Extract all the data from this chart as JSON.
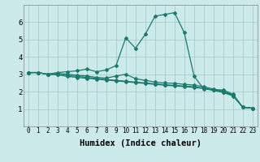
{
  "xlabel": "Humidex (Indice chaleur)",
  "background_color": "#cceaea",
  "grid_color": "#aacccc",
  "line_color": "#1a7a6e",
  "x_data": [
    0,
    1,
    2,
    3,
    4,
    5,
    6,
    7,
    8,
    9,
    10,
    11,
    12,
    13,
    14,
    15,
    16,
    17,
    18,
    19,
    20,
    21,
    22,
    23
  ],
  "lines": [
    [
      3.1,
      3.1,
      3.0,
      3.1,
      3.15,
      3.2,
      3.3,
      3.15,
      3.25,
      3.5,
      5.1,
      4.5,
      5.3,
      6.35,
      6.45,
      6.55,
      5.4,
      2.9,
      2.15,
      2.1,
      2.1,
      1.85,
      1.1,
      1.05
    ],
    [
      3.1,
      3.1,
      3.0,
      3.05,
      3.0,
      2.95,
      2.9,
      2.82,
      2.78,
      2.9,
      3.0,
      2.75,
      2.65,
      2.55,
      2.5,
      2.48,
      2.42,
      2.38,
      2.28,
      2.15,
      2.02,
      1.82,
      1.1,
      1.05
    ],
    [
      3.1,
      3.1,
      3.0,
      3.0,
      2.92,
      2.88,
      2.82,
      2.76,
      2.7,
      2.65,
      2.6,
      2.55,
      2.5,
      2.45,
      2.4,
      2.36,
      2.32,
      2.28,
      2.2,
      2.1,
      1.98,
      1.78,
      1.1,
      1.05
    ],
    [
      3.1,
      3.1,
      3.0,
      2.98,
      2.88,
      2.82,
      2.77,
      2.72,
      2.67,
      2.62,
      2.57,
      2.52,
      2.47,
      2.42,
      2.37,
      2.33,
      2.29,
      2.24,
      2.18,
      2.08,
      1.95,
      1.75,
      1.1,
      1.05
    ]
  ],
  "ylim": [
    0,
    7
  ],
  "xlim": [
    -0.5,
    23.5
  ],
  "yticks": [
    1,
    2,
    3,
    4,
    5,
    6
  ],
  "xticks": [
    0,
    1,
    2,
    3,
    4,
    5,
    6,
    7,
    8,
    9,
    10,
    11,
    12,
    13,
    14,
    15,
    16,
    17,
    18,
    19,
    20,
    21,
    22,
    23
  ],
  "tick_fontsize": 5.5,
  "xlabel_fontsize": 7.5,
  "ylabel_fontsize": 7.5
}
